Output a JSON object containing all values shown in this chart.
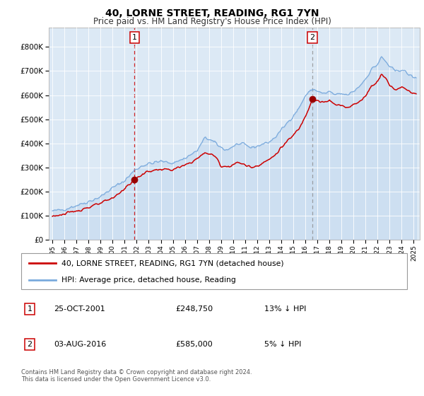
{
  "title": "40, LORNE STREET, READING, RG1 7YN",
  "subtitle": "Price paid vs. HM Land Registry's House Price Index (HPI)",
  "background_color": "#dce9f5",
  "plot_bg_color": "#dce9f5",
  "hpi_line_color": "#7aaadd",
  "property_line_color": "#cc0000",
  "marker_color": "#990000",
  "dashed_line1_color": "#cc0000",
  "dashed_line2_color": "#888888",
  "annotation1": {
    "label": "1",
    "date_x": 2001.82,
    "y": 248750,
    "price": "£248,750",
    "date_str": "25-OCT-2001",
    "pct": "13% ↓ HPI"
  },
  "annotation2": {
    "label": "2",
    "date_x": 2016.59,
    "y": 585000,
    "price": "£585,000",
    "date_str": "03-AUG-2016",
    "pct": "5% ↓ HPI"
  },
  "legend1": "40, LORNE STREET, READING, RG1 7YN (detached house)",
  "legend2": "HPI: Average price, detached house, Reading",
  "footer": "Contains HM Land Registry data © Crown copyright and database right 2024.\nThis data is licensed under the Open Government Licence v3.0.",
  "ylim": [
    0,
    880000
  ],
  "xlim": [
    1994.7,
    2025.5
  ],
  "yticks": [
    0,
    100000,
    200000,
    300000,
    400000,
    500000,
    600000,
    700000,
    800000
  ],
  "ytick_labels": [
    "£0",
    "£100K",
    "£200K",
    "£300K",
    "£400K",
    "£500K",
    "£600K",
    "£700K",
    "£800K"
  ],
  "xtick_years": [
    1995,
    1996,
    1997,
    1998,
    1999,
    2000,
    2001,
    2002,
    2003,
    2004,
    2005,
    2006,
    2007,
    2008,
    2009,
    2010,
    2011,
    2012,
    2013,
    2014,
    2015,
    2016,
    2017,
    2018,
    2019,
    2020,
    2021,
    2022,
    2023,
    2024,
    2025
  ]
}
